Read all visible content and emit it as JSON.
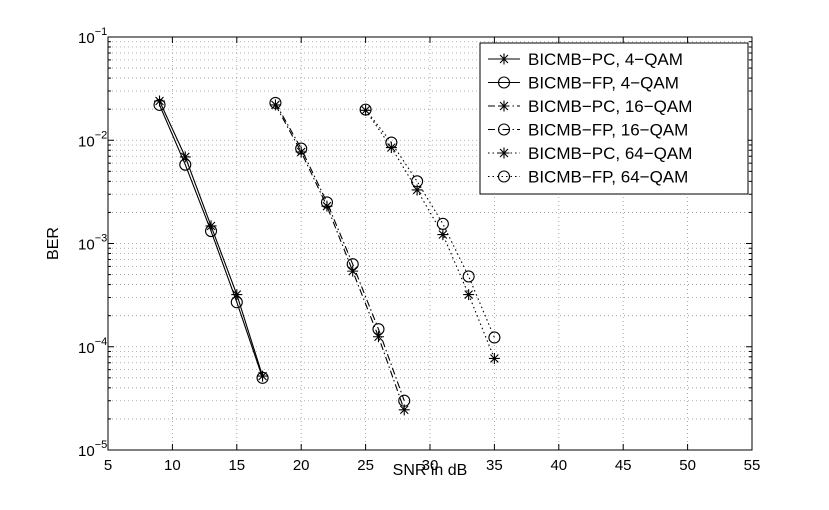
{
  "chart_data": {
    "type": "line",
    "title": "",
    "xlabel": "SNR in dB",
    "ylabel": "BER",
    "xlim": [
      5,
      55
    ],
    "ylim": [
      1e-05,
      0.1
    ],
    "yscale": "log",
    "grid": true,
    "legend_position": "top-right",
    "x_ticks": [
      5,
      10,
      15,
      20,
      25,
      30,
      35,
      40,
      45,
      50,
      55
    ],
    "x_tick_labels": [
      "5",
      "10",
      "15",
      "20",
      "25",
      "30",
      "35",
      "40",
      "45",
      "50",
      "55"
    ],
    "y_ticks": [
      {
        "value": 1e-05,
        "base": "10",
        "exp": "−5"
      },
      {
        "value": 0.0001,
        "base": "10",
        "exp": "−4"
      },
      {
        "value": 0.001,
        "base": "10",
        "exp": "−3"
      },
      {
        "value": 0.01,
        "base": "10",
        "exp": "−2"
      },
      {
        "value": 0.1,
        "base": "10",
        "exp": "−1"
      }
    ],
    "series": [
      {
        "name": "BICMB−PC, 4−QAM",
        "marker": "star",
        "line": "solid",
        "x": [
          9,
          11,
          13,
          15,
          17
        ],
        "y": [
          0.024,
          0.0069,
          0.00148,
          0.00032,
          5.2e-05
        ]
      },
      {
        "name": "BICMB−FP, 4−QAM",
        "marker": "circle",
        "line": "solid",
        "x": [
          9,
          11,
          13,
          15,
          17
        ],
        "y": [
          0.022,
          0.0058,
          0.00132,
          0.00027,
          5e-05
        ]
      },
      {
        "name": "BICMB−PC, 16−QAM",
        "marker": "star",
        "line": "dashdot",
        "x": [
          18,
          20,
          22,
          24,
          26,
          28
        ],
        "y": [
          0.022,
          0.0077,
          0.0023,
          0.00054,
          0.000125,
          2.45e-05
        ]
      },
      {
        "name": "BICMB−FP, 16−QAM",
        "marker": "circle",
        "line": "dashdot",
        "x": [
          18,
          20,
          22,
          24,
          26,
          28
        ],
        "y": [
          0.023,
          0.0083,
          0.0025,
          0.00063,
          0.000148,
          3e-05
        ]
      },
      {
        "name": "BICMB−PC, 64−QAM",
        "marker": "star",
        "line": "dotted",
        "x": [
          25,
          27,
          29,
          31,
          33,
          35
        ],
        "y": [
          0.0195,
          0.0085,
          0.0033,
          0.00122,
          0.00032,
          7.7e-05
        ]
      },
      {
        "name": "BICMB−FP, 64−QAM",
        "marker": "circle",
        "line": "dotted",
        "x": [
          25,
          27,
          29,
          31,
          33,
          35
        ],
        "y": [
          0.0198,
          0.0095,
          0.004,
          0.00155,
          0.00048,
          0.000123
        ]
      }
    ]
  }
}
